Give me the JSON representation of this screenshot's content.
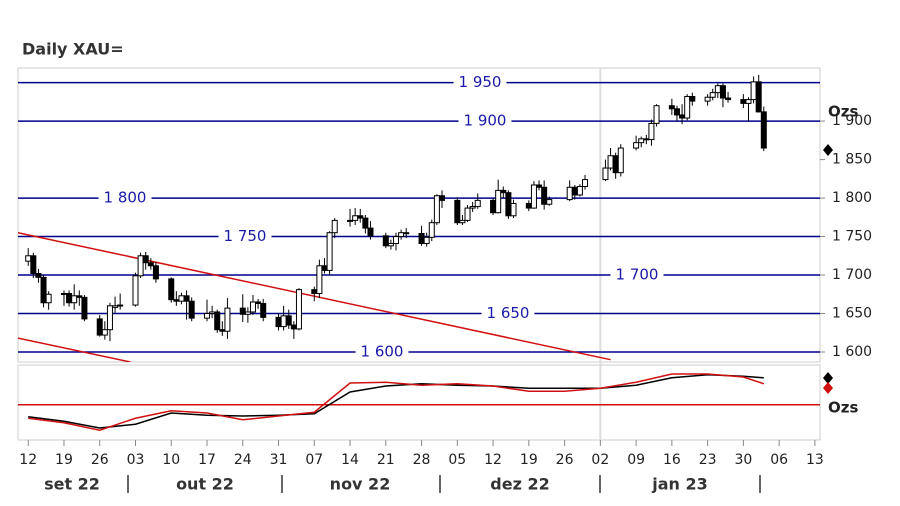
{
  "chart_data": {
    "type": "candlestick",
    "title": "Daily XAU=",
    "y_unit": "Ozs",
    "x": [
      "2022-09-12",
      "2022-09-13",
      "2022-09-14",
      "2022-09-15",
      "2022-09-16",
      "2022-09-19",
      "2022-09-20",
      "2022-09-21",
      "2022-09-22",
      "2022-09-23",
      "2022-09-26",
      "2022-09-27",
      "2022-09-28",
      "2022-09-29",
      "2022-09-30",
      "2022-10-03",
      "2022-10-04",
      "2022-10-05",
      "2022-10-06",
      "2022-10-07",
      "2022-10-10",
      "2022-10-11",
      "2022-10-12",
      "2022-10-13",
      "2022-10-14",
      "2022-10-17",
      "2022-10-18",
      "2022-10-19",
      "2022-10-20",
      "2022-10-21",
      "2022-10-24",
      "2022-10-25",
      "2022-10-26",
      "2022-10-27",
      "2022-10-28",
      "2022-10-31",
      "2022-11-01",
      "2022-11-02",
      "2022-11-03",
      "2022-11-04",
      "2022-11-07",
      "2022-11-08",
      "2022-11-09",
      "2022-11-10",
      "2022-11-11",
      "2022-11-14",
      "2022-11-15",
      "2022-11-16",
      "2022-11-17",
      "2022-11-18",
      "2022-11-21",
      "2022-11-22",
      "2022-11-23",
      "2022-11-24",
      "2022-11-25",
      "2022-11-28",
      "2022-11-29",
      "2022-11-30",
      "2022-12-01",
      "2022-12-02",
      "2022-12-05",
      "2022-12-06",
      "2022-12-07",
      "2022-12-08",
      "2022-12-09",
      "2022-12-12",
      "2022-12-13",
      "2022-12-14",
      "2022-12-15",
      "2022-12-16",
      "2022-12-19",
      "2022-12-20",
      "2022-12-21",
      "2022-12-22",
      "2022-12-23",
      "2022-12-27",
      "2022-12-28",
      "2022-12-29",
      "2022-12-30",
      "2023-01-03",
      "2023-01-04",
      "2023-01-05",
      "2023-01-06",
      "2023-01-09",
      "2023-01-10",
      "2023-01-11",
      "2023-01-12",
      "2023-01-13",
      "2023-01-16",
      "2023-01-17",
      "2023-01-18",
      "2023-01-19",
      "2023-01-20",
      "2023-01-23",
      "2023-01-24",
      "2023-01-25",
      "2023-01-26",
      "2023-01-27",
      "2023-01-30",
      "2023-01-31",
      "2023-02-01",
      "2023-02-02",
      "2023-02-03"
    ],
    "open": [
      1718,
      1725,
      1702,
      1697,
      1664,
      1675,
      1676,
      1664,
      1673,
      1671,
      1643,
      1622,
      1629,
      1658,
      1660,
      1661,
      1699,
      1725,
      1716,
      1712,
      1695,
      1668,
      1666,
      1673,
      1666,
      1644,
      1650,
      1652,
      1629,
      1627,
      1657,
      1649,
      1652,
      1665,
      1663,
      1645,
      1633,
      1647,
      1635,
      1630,
      1681,
      1676,
      1712,
      1706,
      1755,
      1770,
      1771,
      1777,
      1774,
      1761,
      1751,
      1738,
      1741,
      1750,
      1754,
      1754,
      1741,
      1749,
      1768,
      1803,
      1797,
      1768,
      1771,
      1787,
      1789,
      1797,
      1781,
      1810,
      1807,
      1777,
      1793,
      1787,
      1817,
      1814,
      1792,
      1798,
      1814,
      1804,
      1815,
      1824,
      1839,
      1855,
      1833,
      1865,
      1872,
      1877,
      1876,
      1897,
      1920,
      1916,
      1908,
      1904,
      1932,
      1926,
      1931,
      1937,
      1946,
      1930,
      1928,
      1923,
      1928,
      1951,
      1912
    ],
    "high": [
      1735,
      1729,
      1708,
      1700,
      1679,
      1680,
      1680,
      1688,
      1680,
      1674,
      1648,
      1640,
      1664,
      1672,
      1676,
      1703,
      1729,
      1730,
      1722,
      1717,
      1697,
      1679,
      1677,
      1680,
      1671,
      1668,
      1660,
      1655,
      1640,
      1670,
      1675,
      1658,
      1674,
      1669,
      1669,
      1650,
      1660,
      1655,
      1640,
      1683,
      1685,
      1720,
      1722,
      1757,
      1774,
      1786,
      1787,
      1786,
      1778,
      1770,
      1755,
      1746,
      1755,
      1759,
      1761,
      1764,
      1755,
      1772,
      1805,
      1810,
      1801,
      1778,
      1791,
      1795,
      1806,
      1800,
      1824,
      1815,
      1810,
      1798,
      1797,
      1822,
      1823,
      1823,
      1802,
      1823,
      1817,
      1818,
      1830,
      1850,
      1865,
      1859,
      1870,
      1881,
      1880,
      1882,
      1902,
      1922,
      1929,
      1920,
      1922,
      1935,
      1937,
      1935,
      1942,
      1949,
      1949,
      1938,
      1935,
      1931,
      1958,
      1960,
      1919
    ],
    "low": [
      1712,
      1696,
      1690,
      1658,
      1655,
      1660,
      1659,
      1655,
      1660,
      1640,
      1620,
      1616,
      1614,
      1651,
      1655,
      1659,
      1696,
      1707,
      1707,
      1690,
      1664,
      1660,
      1662,
      1642,
      1640,
      1640,
      1644,
      1625,
      1621,
      1617,
      1639,
      1638,
      1648,
      1656,
      1640,
      1628,
      1628,
      1630,
      1617,
      1628,
      1666,
      1670,
      1702,
      1700,
      1748,
      1763,
      1765,
      1768,
      1754,
      1746,
      1735,
      1733,
      1732,
      1746,
      1748,
      1738,
      1737,
      1744,
      1765,
      1787,
      1765,
      1765,
      1769,
      1782,
      1786,
      1778,
      1780,
      1800,
      1773,
      1774,
      1783,
      1786,
      1810,
      1785,
      1790,
      1796,
      1798,
      1802,
      1811,
      1822,
      1836,
      1825,
      1828,
      1862,
      1866,
      1870,
      1868,
      1893,
      1908,
      1900,
      1896,
      1901,
      1920,
      1920,
      1927,
      1930,
      1918,
      1924,
      1917,
      1900,
      1923,
      1911,
      1861
    ],
    "close": [
      1725,
      1702,
      1697,
      1664,
      1675,
      1676,
      1664,
      1673,
      1671,
      1643,
      1622,
      1629,
      1660,
      1660,
      1661,
      1699,
      1725,
      1716,
      1712,
      1695,
      1668,
      1666,
      1673,
      1666,
      1644,
      1650,
      1652,
      1629,
      1627,
      1657,
      1649,
      1652,
      1665,
      1663,
      1645,
      1633,
      1647,
      1635,
      1630,
      1681,
      1676,
      1712,
      1706,
      1755,
      1771,
      1771,
      1777,
      1774,
      1761,
      1751,
      1738,
      1741,
      1750,
      1755,
      1755,
      1741,
      1749,
      1768,
      1803,
      1797,
      1768,
      1771,
      1787,
      1789,
      1797,
      1781,
      1810,
      1807,
      1777,
      1793,
      1787,
      1817,
      1814,
      1792,
      1798,
      1814,
      1804,
      1815,
      1824,
      1839,
      1855,
      1833,
      1865,
      1872,
      1877,
      1876,
      1897,
      1920,
      1916,
      1908,
      1904,
      1932,
      1926,
      1931,
      1937,
      1946,
      1930,
      1928,
      1923,
      1928,
      1951,
      1912,
      1865
    ],
    "xlim": [
      "2022-09-10",
      "2023-02-14"
    ],
    "ylim": [
      1587,
      1969
    ],
    "yticks": [
      {
        "value": 1600,
        "label": "1 600"
      },
      {
        "value": 1650,
        "label": "1 650"
      },
      {
        "value": 1700,
        "label": "1 700"
      },
      {
        "value": 1750,
        "label": "1 750"
      },
      {
        "value": 1800,
        "label": "1 800"
      },
      {
        "value": 1850,
        "label": "1 850"
      },
      {
        "value": 1900,
        "label": "1 900"
      }
    ],
    "xticks": [
      {
        "value": "2022-09-12",
        "label": "12"
      },
      {
        "value": "2022-09-19",
        "label": "19"
      },
      {
        "value": "2022-09-26",
        "label": "26"
      },
      {
        "value": "2022-10-03",
        "label": "03"
      },
      {
        "value": "2022-10-10",
        "label": "10"
      },
      {
        "value": "2022-10-17",
        "label": "17"
      },
      {
        "value": "2022-10-24",
        "label": "24"
      },
      {
        "value": "2022-10-31",
        "label": "31"
      },
      {
        "value": "2022-11-07",
        "label": "07"
      },
      {
        "value": "2022-11-14",
        "label": "14"
      },
      {
        "value": "2022-11-21",
        "label": "21"
      },
      {
        "value": "2022-11-28",
        "label": "28"
      },
      {
        "value": "2022-12-05",
        "label": "05"
      },
      {
        "value": "2022-12-12",
        "label": "12"
      },
      {
        "value": "2022-12-19",
        "label": "19"
      },
      {
        "value": "2022-12-26",
        "label": "26"
      },
      {
        "value": "2023-01-02",
        "label": "02"
      },
      {
        "value": "2023-01-09",
        "label": "09"
      },
      {
        "value": "2023-01-16",
        "label": "16"
      },
      {
        "value": "2023-01-23",
        "label": "23"
      },
      {
        "value": "2023-01-30",
        "label": "30"
      },
      {
        "value": "2023-02-06",
        "label": "06"
      },
      {
        "value": "2023-02-13",
        "label": "13"
      }
    ],
    "months": [
      "set 22",
      "out 22",
      "nov 22",
      "dez 22",
      "jan 23"
    ],
    "levels": [
      {
        "value": 1950,
        "label": "1 950"
      },
      {
        "value": 1900,
        "label": "1 900"
      },
      {
        "value": 1800,
        "label": "1 800"
      },
      {
        "value": 1750,
        "label": "1 750"
      },
      {
        "value": 1700,
        "label": "1 700"
      },
      {
        "value": 1650,
        "label": "1 650"
      },
      {
        "value": 1600,
        "label": "1 600"
      }
    ],
    "level_color": "#00008b",
    "trendlines": [
      {
        "x": [
          "2022-09-10",
          "2023-01-04"
        ],
        "y": [
          1755,
          1590
        ],
        "color": "#d01010"
      },
      {
        "x": [
          "2022-09-10",
          "2022-10-02"
        ],
        "y": [
          1618,
          1587
        ],
        "color": "#d01010"
      }
    ],
    "indicator": {
      "type": "line",
      "unit": "Ozs",
      "ylim": [
        0,
        100
      ],
      "x": [
        "2022-09-12",
        "2022-09-19",
        "2022-09-26",
        "2022-10-03",
        "2022-10-10",
        "2022-10-17",
        "2022-10-24",
        "2022-10-31",
        "2022-11-07",
        "2022-11-14",
        "2022-11-21",
        "2022-11-28",
        "2022-12-05",
        "2022-12-12",
        "2022-12-19",
        "2022-12-26",
        "2023-01-02",
        "2023-01-09",
        "2023-01-16",
        "2023-01-23",
        "2023-01-30",
        "2023-02-03"
      ],
      "series": [
        {
          "color": "#000000",
          "values": [
            31,
            25,
            16,
            21,
            36,
            33,
            32,
            33,
            35,
            64,
            72,
            75,
            73,
            72,
            69,
            69,
            69,
            73,
            83,
            87,
            85,
            83
          ]
        },
        {
          "color": "#d01010",
          "values": [
            29,
            23,
            13,
            29,
            39,
            36,
            27,
            32,
            37,
            76,
            77,
            73,
            75,
            72,
            65,
            65,
            69,
            77,
            88,
            88,
            84,
            75
          ]
        }
      ],
      "level": 47,
      "level_color": "#d01010"
    }
  }
}
